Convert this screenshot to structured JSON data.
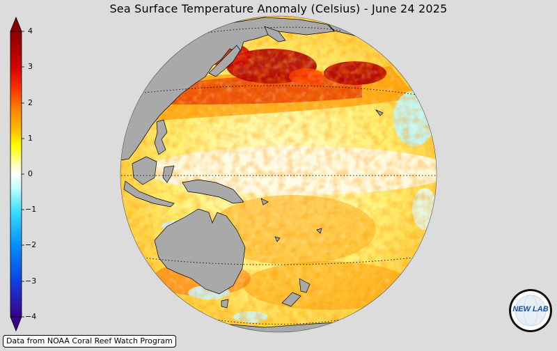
{
  "title": "Sea Surface Temperature Anomaly (Celsius) - June 24 2025",
  "colorbar": {
    "ticks": [
      "4",
      "3",
      "2",
      "1",
      "0",
      "−1",
      "−2",
      "−3",
      "−4"
    ],
    "colors": {
      "max": "#8b0000",
      "hot": "#e60000",
      "warm": "#ff8c00",
      "mild": "#ffff00",
      "zero": "#ffffff",
      "cool": "#66ffff",
      "cold": "#0080ff",
      "min": "#3a0088"
    }
  },
  "map": {
    "land_color": "#a9a9a9",
    "background_color": "#dcdcdc"
  },
  "credit": "Data from NOAA Coral Reef Watch Program",
  "logo": {
    "text": "NEW LAB",
    "icon": "nex-lab-logo-icon"
  }
}
